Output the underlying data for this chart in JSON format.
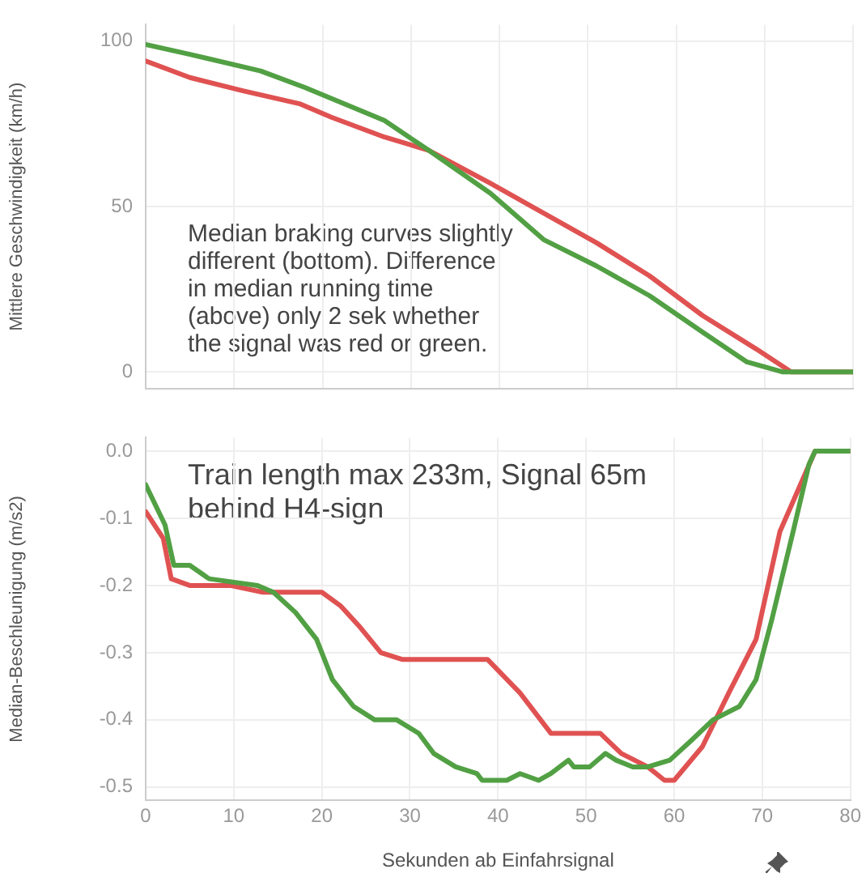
{
  "chart_data": [
    {
      "type": "line",
      "ylabel": "Mittlere Geschwindigkeit (km/h)",
      "xlim": [
        0,
        80
      ],
      "xticks": [
        0,
        10,
        20,
        30,
        40,
        50,
        60,
        70,
        80
      ],
      "ylim": [
        -5,
        105
      ],
      "yticks": [
        0,
        50,
        100
      ],
      "tick_labels": "y",
      "grid": true,
      "legend": false,
      "marker": "none",
      "line_style": "solid",
      "annotations": [
        "Median braking curves slightly different (bottom). Difference in median running time (above) only 2 sek whether the signal was red or green.",
        "Train length max 233m, Signal 65m behind H4-sign"
      ],
      "series": [
        {
          "color": "#52a044",
          "x": [
            0,
            5,
            13,
            18,
            27,
            32,
            39,
            45,
            51,
            57,
            63,
            68,
            72,
            80
          ],
          "values": [
            99,
            96,
            91,
            86,
            76,
            67,
            54,
            40,
            32,
            23,
            12,
            3,
            0,
            0
          ]
        },
        {
          "color": "#e05252",
          "x": [
            0,
            5,
            11,
            17.5,
            21,
            27,
            32,
            39,
            45,
            51,
            57,
            63,
            69,
            73,
            80
          ],
          "values": [
            94,
            89,
            85,
            81,
            77,
            71,
            67,
            57,
            48,
            39,
            29,
            17,
            7,
            0,
            0
          ]
        }
      ]
    },
    {
      "type": "line",
      "xlabel": "Sekunden ab Einfahrsignal",
      "ylabel": "Median-Beschleunigung (m/s2)",
      "xlim": [
        0,
        80
      ],
      "xticks": [
        0,
        10,
        20,
        30,
        40,
        50,
        60,
        70,
        80
      ],
      "ylim": [
        -0.52,
        0.02
      ],
      "yticks": [
        {
          "value": 0,
          "label": "0.0"
        },
        {
          "value": -0.1,
          "label": "-0.1"
        },
        {
          "value": -0.2,
          "label": "-0.2"
        },
        {
          "value": -0.3,
          "label": "-0.3"
        },
        {
          "value": -0.4,
          "label": "-0.4"
        },
        {
          "value": -0.5,
          "label": "-0.5"
        }
      ],
      "grid": true,
      "legend": false,
      "marker": "none",
      "line_style": "solid",
      "series": [
        {
          "color": "#52a044",
          "x": [
            0,
            2.2,
            3.2,
            5,
            7.2,
            12.7,
            14.5,
            17,
            19.4,
            21.2,
            23.6,
            26,
            28.5,
            31,
            32.7,
            35.2,
            37.6,
            38.2,
            41,
            42.5,
            44.6,
            46,
            48,
            48.6,
            50.4,
            52.2,
            53.4,
            55.3,
            57,
            59.5,
            62,
            64.4,
            67.4,
            69.3,
            71.1,
            73.5,
            75.3,
            76,
            80
          ],
          "values": [
            -0.05,
            -0.11,
            -0.17,
            -0.17,
            -0.19,
            -0.2,
            -0.21,
            -0.24,
            -0.28,
            -0.34,
            -0.38,
            -0.4,
            -0.4,
            -0.42,
            -0.45,
            -0.47,
            -0.48,
            -0.49,
            -0.49,
            -0.48,
            -0.49,
            -0.48,
            -0.46,
            -0.47,
            -0.47,
            -0.45,
            -0.46,
            -0.47,
            -0.47,
            -0.46,
            -0.43,
            -0.4,
            -0.38,
            -0.34,
            -0.25,
            -0.12,
            -0.02,
            0,
            0
          ]
        },
        {
          "color": "#e05252",
          "x": [
            0,
            2,
            2.9,
            5,
            9.6,
            13.3,
            15.7,
            17.8,
            20,
            22.1,
            24.2,
            26.7,
            29.1,
            38.8,
            42.5,
            46,
            48.6,
            51.6,
            54,
            57,
            58.9,
            60,
            63.2,
            66.2,
            69.3,
            72,
            76,
            80
          ],
          "values": [
            -0.09,
            -0.13,
            -0.19,
            -0.2,
            -0.2,
            -0.21,
            -0.21,
            -0.21,
            -0.21,
            -0.23,
            -0.26,
            -0.3,
            -0.31,
            -0.31,
            -0.36,
            -0.42,
            -0.42,
            -0.42,
            -0.45,
            -0.47,
            -0.49,
            -0.49,
            -0.44,
            -0.36,
            -0.28,
            -0.12,
            0,
            0
          ]
        }
      ]
    }
  ]
}
